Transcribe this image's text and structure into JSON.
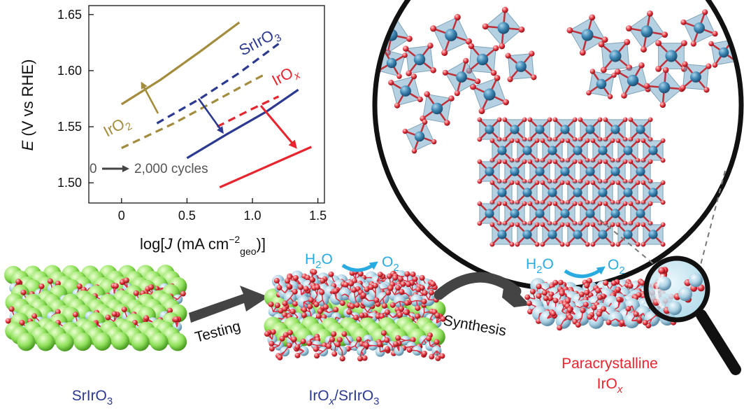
{
  "chart_data": {
    "type": "line",
    "ylabel_italic": "E",
    "ylabel_rest": " (V vs RHE)",
    "xlabel_pre": "log[",
    "xlabel_italic": "J",
    "xlabel_mid": " (mA cm",
    "xlabel_sup": "−2",
    "xlabel_sub": "geo",
    "xlabel_post": ")]",
    "xlim": [
      -0.25,
      1.55
    ],
    "ylim": [
      1.482,
      1.658
    ],
    "x_ticks": [
      "0",
      "0.5",
      "1.0",
      "1.5"
    ],
    "x_tick_values": [
      0,
      0.5,
      1.0,
      1.5
    ],
    "y_ticks": [
      "1.50",
      "1.55",
      "1.60",
      "1.65"
    ],
    "y_tick_values": [
      1.5,
      1.55,
      1.6,
      1.65
    ],
    "legend_note": "0 → 2,000 cycles",
    "legend_note_left": "0",
    "legend_note_right": "2,000 cycles",
    "series": [
      {
        "label": "IrO",
        "label_sub": "2",
        "color": "#a38c3c",
        "cycle": "0",
        "style": "dashed",
        "x": [
          0.0,
          0.4,
          0.7,
          1.0,
          1.1
        ],
        "y": [
          1.531,
          1.553,
          1.572,
          1.591,
          1.597
        ]
      },
      {
        "label": "IrO",
        "label_sub": "2",
        "color": "#a38c3c",
        "cycle": "2000",
        "style": "solid",
        "x": [
          0.0,
          0.3,
          0.6,
          0.9
        ],
        "y": [
          1.57,
          1.592,
          1.617,
          1.643
        ]
      },
      {
        "label": "SrIrO",
        "label_sub": "3",
        "color": "#2b3990",
        "cycle": "0",
        "style": "dashed",
        "x": [
          0.27,
          0.6,
          0.9,
          1.2
        ],
        "y": [
          1.553,
          1.575,
          1.598,
          1.624
        ]
      },
      {
        "label": "SrIrO",
        "label_sub": "3",
        "color": "#2b3990",
        "cycle": "2000",
        "style": "solid",
        "x": [
          0.5,
          0.8,
          1.1,
          1.35
        ],
        "y": [
          1.522,
          1.543,
          1.563,
          1.583
        ]
      },
      {
        "label": "IrO",
        "label_sub": "x",
        "color": "#e8242f",
        "cycle": "0",
        "style": "dashed",
        "x": [
          0.73,
          1.0,
          1.2
        ],
        "y": [
          1.55,
          1.566,
          1.577
        ]
      },
      {
        "label": "IrO",
        "label_sub": "x",
        "color": "#e8242f",
        "cycle": "2000",
        "style": "solid",
        "x": [
          0.75,
          1.1,
          1.45
        ],
        "y": [
          1.496,
          1.514,
          1.532
        ]
      }
    ]
  },
  "labels": {
    "sriro3_series_label": "SrIrO",
    "sriro3_series_sub": "3",
    "irox_series_label": "IrO",
    "irox_series_sub": "x",
    "iro2_series_label": "IrO",
    "iro2_series_sub": "2"
  },
  "schematic": {
    "stage1_label": "SrIrO",
    "stage1_sub": "3",
    "testing_label": "Testing",
    "stage2_label_a": "IrO",
    "stage2_label_x": "x",
    "stage2_label_b": "/SrIrO",
    "stage2_label_sub": "3",
    "synthesis_label": "Synthesis",
    "stage3_label_line1": "Paracrystalline",
    "stage3_label_line2": "IrO",
    "stage3_label_x": "x",
    "h2o_h": "H",
    "h2o_sub": "2",
    "h2o_o": "O",
    "o2_o": "O",
    "o2_sub": "2"
  },
  "colors": {
    "iro2": "#a38c3c",
    "sriro3": "#2b3990",
    "irox": "#e8242f",
    "water": "#29abe2",
    "strontium": "#8ee05a",
    "iridium": "#a9d0e2",
    "oxygen": "#e0303a",
    "arrow_gray": "#444444"
  }
}
